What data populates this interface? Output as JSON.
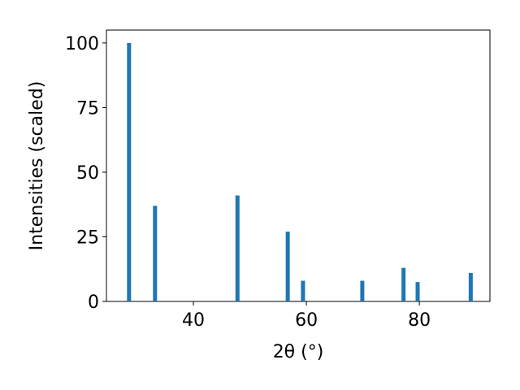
{
  "chart_data": {
    "type": "bar",
    "x": [
      28.6,
      33.2,
      47.8,
      56.7,
      59.4,
      69.9,
      77.2,
      79.7,
      89.1
    ],
    "values": [
      100,
      37,
      41,
      27,
      8,
      8,
      13,
      7.5,
      11
    ],
    "color": "#1f77b4",
    "xlabel": "2θ (°)",
    "ylabel": "Intensities (scaled)",
    "xlim": [
      24.6,
      92.5
    ],
    "xticks": [
      40,
      60,
      80
    ],
    "ylim": [
      0,
      105
    ],
    "yticks": [
      0,
      25,
      50,
      75,
      100
    ]
  }
}
